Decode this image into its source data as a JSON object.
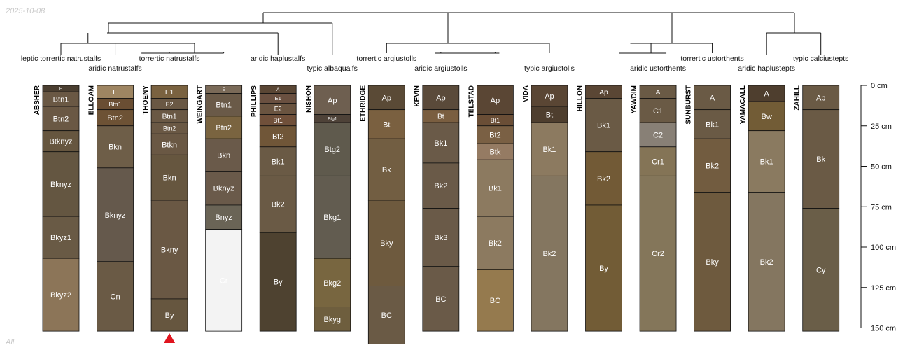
{
  "date_label": "2025-10-08",
  "footer_label": "All",
  "depth_axis": {
    "unit": "cm",
    "max_depth": 150,
    "ticks": [
      {
        "value": 0,
        "label": "0 cm"
      },
      {
        "value": 25,
        "label": "25 cm"
      },
      {
        "value": 50,
        "label": "50 cm"
      },
      {
        "value": 75,
        "label": "75 cm"
      },
      {
        "value": 100,
        "label": "100 cm"
      },
      {
        "value": 125,
        "label": "125 cm"
      },
      {
        "value": 150,
        "label": "150 cm"
      }
    ]
  },
  "profiles": [
    {
      "name": "ABSHER",
      "taxon": "leptic torrertic natrustalfs",
      "horizons": [
        {
          "name": "E",
          "top": 0,
          "bottom": 4,
          "color": "#4a3e30"
        },
        {
          "name": "Btn1",
          "top": 4,
          "bottom": 13,
          "color": "#6a5844"
        },
        {
          "name": "Btn2",
          "top": 13,
          "bottom": 28,
          "color": "#6a5844"
        },
        {
          "name": "Btknyz",
          "top": 28,
          "bottom": 41,
          "color": "#66563f"
        },
        {
          "name": "Bknyz",
          "top": 41,
          "bottom": 81,
          "color": "#645641"
        },
        {
          "name": "Bkyz1",
          "top": 81,
          "bottom": 107,
          "color": "#695a45"
        },
        {
          "name": "Bkyz2",
          "top": 107,
          "bottom": 152,
          "color": "#8c7558"
        }
      ]
    },
    {
      "name": "ELLOAM",
      "taxon": "aridic natrustalfs",
      "horizons": [
        {
          "name": "E",
          "top": 0,
          "bottom": 8,
          "color": "#9e8562"
        },
        {
          "name": "Btn1",
          "top": 8,
          "bottom": 15,
          "color": "#6a4e33"
        },
        {
          "name": "Btn2",
          "top": 15,
          "bottom": 25,
          "color": "#6d5235"
        },
        {
          "name": "Bkn",
          "top": 25,
          "bottom": 51,
          "color": "#6e5e48"
        },
        {
          "name": "Bknyz",
          "top": 51,
          "bottom": 109,
          "color": "#65594c"
        },
        {
          "name": "Cn",
          "top": 109,
          "bottom": 152,
          "color": "#6a5a45"
        }
      ]
    },
    {
      "name": "THOENY",
      "taxon": "torrertic natrustalfs",
      "horizons": [
        {
          "name": "E1",
          "top": 0,
          "bottom": 8,
          "color": "#7a6240"
        },
        {
          "name": "E2",
          "top": 8,
          "bottom": 15,
          "color": "#6a5844"
        },
        {
          "name": "Btn1",
          "top": 15,
          "bottom": 23,
          "color": "#6a5844"
        },
        {
          "name": "Btn2",
          "top": 23,
          "bottom": 30,
          "color": "#6a5844"
        },
        {
          "name": "Btkn",
          "top": 30,
          "bottom": 43,
          "color": "#6a5844"
        },
        {
          "name": "Bkn",
          "top": 43,
          "bottom": 71,
          "color": "#66563f"
        },
        {
          "name": "Bkny",
          "top": 71,
          "bottom": 132,
          "color": "#6a5844"
        },
        {
          "name": "By",
          "top": 132,
          "bottom": 152,
          "color": "#66563f"
        }
      ]
    },
    {
      "name": "WEINGART",
      "taxon": "",
      "horizons": [
        {
          "name": "E",
          "top": 0,
          "bottom": 5,
          "color": "#7a6a58"
        },
        {
          "name": "Btn1",
          "top": 5,
          "bottom": 19,
          "color": "#6a5a48"
        },
        {
          "name": "Btn2",
          "top": 19,
          "bottom": 33,
          "color": "#7a6440"
        },
        {
          "name": "Bkn",
          "top": 33,
          "bottom": 53,
          "color": "#6a5a4a"
        },
        {
          "name": "Bknyz",
          "top": 53,
          "bottom": 74,
          "color": "#6a5a4a"
        },
        {
          "name": "Bnyz",
          "top": 74,
          "bottom": 89,
          "color": "#6a6456"
        },
        {
          "name": "Cr",
          "top": 89,
          "bottom": 152,
          "color": "#f3f3f3"
        }
      ]
    },
    {
      "name": "PHILLIPS",
      "taxon": "aridic haplustalfs",
      "horizons": [
        {
          "name": "A",
          "top": 0,
          "bottom": 5,
          "color": "#5a4634"
        },
        {
          "name": "E1",
          "top": 5,
          "bottom": 11,
          "color": "#6a5040"
        },
        {
          "name": "E2",
          "top": 11,
          "bottom": 18,
          "color": "#6a5440"
        },
        {
          "name": "Bt1",
          "top": 18,
          "bottom": 25,
          "color": "#70503a"
        },
        {
          "name": "Bt2",
          "top": 25,
          "bottom": 38,
          "color": "#705638"
        },
        {
          "name": "Bk1",
          "top": 38,
          "bottom": 56,
          "color": "#6a5a45"
        },
        {
          "name": "Bk2",
          "top": 56,
          "bottom": 91,
          "color": "#6a5a45"
        },
        {
          "name": "By",
          "top": 91,
          "bottom": 152,
          "color": "#4e4230"
        }
      ]
    },
    {
      "name": "NISHON",
      "taxon": "typic albaqualfs",
      "horizons": [
        {
          "name": "Ap",
          "top": 0,
          "bottom": 18,
          "color": "#6e5f50"
        },
        {
          "name": "Btg1",
          "top": 18,
          "bottom": 23,
          "color": "#4e4238"
        },
        {
          "name": "Btg2",
          "top": 23,
          "bottom": 56,
          "color": "#5f5a4d"
        },
        {
          "name": "Bkg1",
          "top": 56,
          "bottom": 107,
          "color": "#625c50"
        },
        {
          "name": "Bkg2",
          "top": 107,
          "bottom": 137,
          "color": "#786640"
        },
        {
          "name": "Bkyg",
          "top": 137,
          "bottom": 152,
          "color": "#6e5e3e"
        }
      ]
    },
    {
      "name": "ETHRIDGE",
      "taxon": "torrertic argiustolls",
      "horizons": [
        {
          "name": "Ap",
          "top": 0,
          "bottom": 15,
          "color": "#5a4a36"
        },
        {
          "name": "Bt",
          "top": 15,
          "bottom": 33,
          "color": "#7a6040"
        },
        {
          "name": "Bk",
          "top": 33,
          "bottom": 71,
          "color": "#725e42"
        },
        {
          "name": "Bky",
          "top": 71,
          "bottom": 124,
          "color": "#6e5a3e"
        },
        {
          "name": "BC",
          "top": 124,
          "bottom": 160,
          "color": "#6a5a45"
        }
      ]
    },
    {
      "name": "KEVIN",
      "taxon": "aridic argiustolls",
      "horizons": [
        {
          "name": "Ap",
          "top": 0,
          "bottom": 15,
          "color": "#5a4a3a"
        },
        {
          "name": "Bt",
          "top": 15,
          "bottom": 23,
          "color": "#7a5e40"
        },
        {
          "name": "Bk1",
          "top": 23,
          "bottom": 48,
          "color": "#6a5a48"
        },
        {
          "name": "Bk2",
          "top": 48,
          "bottom": 76,
          "color": "#6a5a48"
        },
        {
          "name": "Bk3",
          "top": 76,
          "bottom": 112,
          "color": "#6a5a48"
        },
        {
          "name": "BC",
          "top": 112,
          "bottom": 152,
          "color": "#6a5a48"
        }
      ]
    },
    {
      "name": "TELSTAD",
      "taxon": "",
      "horizons": [
        {
          "name": "Ap",
          "top": 0,
          "bottom": 18,
          "color": "#5a4634"
        },
        {
          "name": "Bt1",
          "top": 18,
          "bottom": 25,
          "color": "#6a4e36"
        },
        {
          "name": "Bt2",
          "top": 25,
          "bottom": 36,
          "color": "#7a6044"
        },
        {
          "name": "Btk",
          "top": 36,
          "bottom": 46,
          "color": "#957b63"
        },
        {
          "name": "Bk1",
          "top": 46,
          "bottom": 81,
          "color": "#8c7a60"
        },
        {
          "name": "Bk2",
          "top": 81,
          "bottom": 114,
          "color": "#8c7a60"
        },
        {
          "name": "BC",
          "top": 114,
          "bottom": 152,
          "color": "#957a4e"
        }
      ]
    },
    {
      "name": "VIDA",
      "taxon": "typic argiustolls",
      "horizons": [
        {
          "name": "Ap",
          "top": 0,
          "bottom": 13,
          "color": "#5a4634"
        },
        {
          "name": "Bt",
          "top": 13,
          "bottom": 23,
          "color": "#4e3e2e"
        },
        {
          "name": "Bk1",
          "top": 23,
          "bottom": 56,
          "color": "#8c7a60"
        },
        {
          "name": "Bk2",
          "top": 56,
          "bottom": 152,
          "color": "#847660"
        }
      ]
    },
    {
      "name": "HILLON",
      "taxon": "",
      "horizons": [
        {
          "name": "Ap",
          "top": 0,
          "bottom": 8,
          "color": "#5a4634"
        },
        {
          "name": "Bk1",
          "top": 8,
          "bottom": 41,
          "color": "#6a5a45"
        },
        {
          "name": "Bk2",
          "top": 41,
          "bottom": 74,
          "color": "#725a36"
        },
        {
          "name": "By",
          "top": 74,
          "bottom": 152,
          "color": "#725c36"
        }
      ]
    },
    {
      "name": "YAWDIM",
      "taxon": "aridic ustorthents",
      "horizons": [
        {
          "name": "A",
          "top": 0,
          "bottom": 8,
          "color": "#6a5a45"
        },
        {
          "name": "C1",
          "top": 8,
          "bottom": 23,
          "color": "#6a5a45"
        },
        {
          "name": "C2",
          "top": 23,
          "bottom": 38,
          "color": "#888076"
        },
        {
          "name": "Cr1",
          "top": 38,
          "bottom": 56,
          "color": "#847456"
        },
        {
          "name": "Cr2",
          "top": 56,
          "bottom": 152,
          "color": "#84765a"
        }
      ]
    },
    {
      "name": "SUNBURST",
      "taxon": "torrertic ustorthents",
      "horizons": [
        {
          "name": "A",
          "top": 0,
          "bottom": 15,
          "color": "#6a5a45"
        },
        {
          "name": "Bk1",
          "top": 15,
          "bottom": 33,
          "color": "#6a5a45"
        },
        {
          "name": "Bk2",
          "top": 33,
          "bottom": 66,
          "color": "#725c40"
        },
        {
          "name": "Bky",
          "top": 66,
          "bottom": 152,
          "color": "#6e5a3e"
        }
      ]
    },
    {
      "name": "YAMACALL",
      "taxon": "aridic haplustepts",
      "horizons": [
        {
          "name": "A",
          "top": 0,
          "bottom": 10,
          "color": "#4e3e2e"
        },
        {
          "name": "Bw",
          "top": 10,
          "bottom": 28,
          "color": "#725c36"
        },
        {
          "name": "Bk1",
          "top": 28,
          "bottom": 66,
          "color": "#8a7a60"
        },
        {
          "name": "Bk2",
          "top": 66,
          "bottom": 152,
          "color": "#847660"
        }
      ]
    },
    {
      "name": "ZAHILL",
      "taxon": "typic calciustepts",
      "horizons": [
        {
          "name": "Ap",
          "top": 0,
          "bottom": 15,
          "color": "#6a5a45"
        },
        {
          "name": "Bk",
          "top": 15,
          "bottom": 76,
          "color": "#6a5a45"
        },
        {
          "name": "Cy",
          "top": 76,
          "bottom": 152,
          "color": "#6a5e48"
        }
      ]
    }
  ],
  "marker": {
    "profile": "THOENY",
    "color": "#e0141e"
  }
}
